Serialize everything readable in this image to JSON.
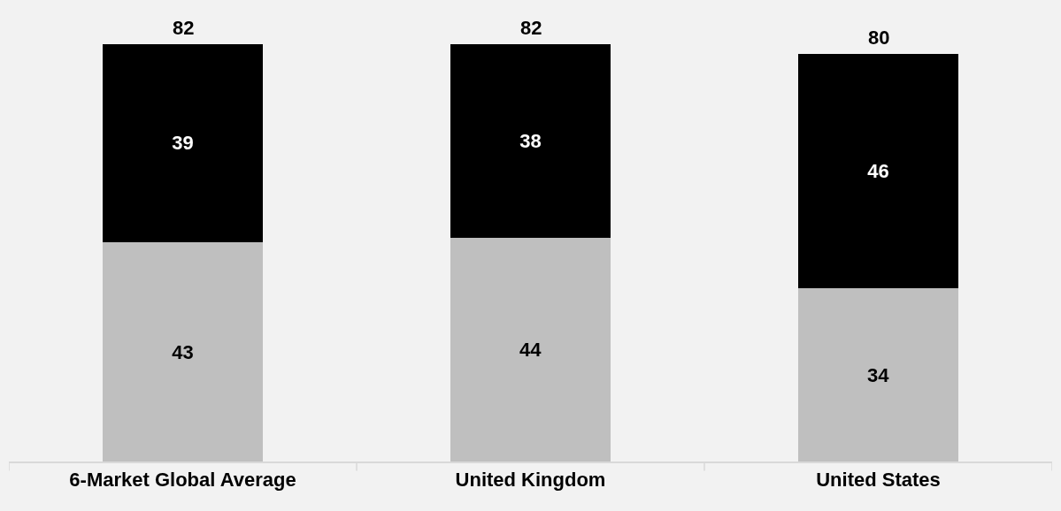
{
  "chart_data": {
    "type": "bar",
    "stacked": true,
    "data_labels": true,
    "categories": [
      "6-Market Global Average",
      "United Kingdom",
      "United States"
    ],
    "series": [
      {
        "color": "#bfbfbf",
        "values": [
          43,
          44,
          34
        ]
      },
      {
        "color": "#000000",
        "values": [
          39,
          38,
          46
        ]
      }
    ],
    "totals": [
      "82",
      "82",
      "80"
    ]
  }
}
